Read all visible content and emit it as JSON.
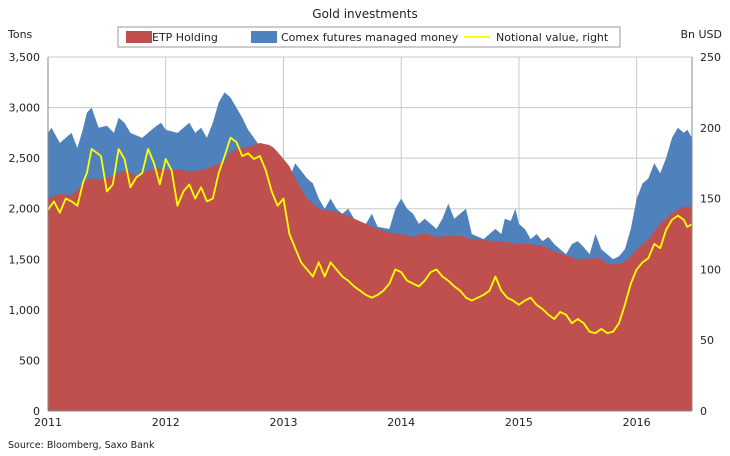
{
  "chart_data": {
    "type": "area",
    "title": "Gold investments",
    "left_axis_unit": "Tons",
    "right_axis_unit": "Bn USD",
    "source": "Source: Bloomberg, Saxo Bank",
    "legend": [
      {
        "name": "ETP Holding",
        "color": "#c0504d",
        "kind": "area"
      },
      {
        "name": "Comex futures managed money",
        "color": "#4f81bd",
        "kind": "area"
      },
      {
        "name": "Notional value, right",
        "color": "#ffff00",
        "kind": "line"
      }
    ],
    "legend_placement": "top-center",
    "grid": true,
    "x_range": [
      2011.0,
      2016.47
    ],
    "x_ticks": [
      2011,
      2012,
      2013,
      2014,
      2015,
      2016
    ],
    "x_tick_labels": [
      "2011",
      "2012",
      "2013",
      "2014",
      "2015",
      "2016"
    ],
    "y_left_range": [
      0,
      3500
    ],
    "y_left_ticks": [
      0,
      500,
      1000,
      1500,
      2000,
      2500,
      3000,
      3500
    ],
    "y_left_tick_labels": [
      "0",
      "500",
      "1,000",
      "1,500",
      "2,000",
      "2,500",
      "3,000",
      "3,500"
    ],
    "y_right_range": [
      0,
      250
    ],
    "y_right_ticks": [
      0,
      50,
      100,
      150,
      200,
      250
    ],
    "y_right_tick_labels": [
      "0",
      "50",
      "100",
      "150",
      "200",
      "250"
    ],
    "series": [
      {
        "name": "ETP Holding",
        "axis": "left",
        "points": [
          [
            2011.0,
            2100
          ],
          [
            2011.1,
            2150
          ],
          [
            2011.2,
            2130
          ],
          [
            2011.3,
            2250
          ],
          [
            2011.35,
            2300
          ],
          [
            2011.45,
            2290
          ],
          [
            2011.55,
            2320
          ],
          [
            2011.65,
            2380
          ],
          [
            2011.75,
            2330
          ],
          [
            2011.85,
            2380
          ],
          [
            2011.95,
            2400
          ],
          [
            2012.0,
            2380
          ],
          [
            2012.1,
            2390
          ],
          [
            2012.2,
            2370
          ],
          [
            2012.3,
            2380
          ],
          [
            2012.4,
            2420
          ],
          [
            2012.5,
            2470
          ],
          [
            2012.55,
            2560
          ],
          [
            2012.6,
            2590
          ],
          [
            2012.65,
            2600
          ],
          [
            2012.7,
            2610
          ],
          [
            2012.8,
            2650
          ],
          [
            2012.88,
            2630
          ],
          [
            2012.92,
            2600
          ],
          [
            2012.98,
            2520
          ],
          [
            2013.05,
            2420
          ],
          [
            2013.1,
            2300
          ],
          [
            2013.2,
            2100
          ],
          [
            2013.3,
            2000
          ],
          [
            2013.4,
            1980
          ],
          [
            2013.5,
            1950
          ],
          [
            2013.6,
            1900
          ],
          [
            2013.7,
            1850
          ],
          [
            2013.8,
            1800
          ],
          [
            2013.9,
            1760
          ],
          [
            2014.0,
            1750
          ],
          [
            2014.1,
            1720
          ],
          [
            2014.2,
            1760
          ],
          [
            2014.3,
            1720
          ],
          [
            2014.4,
            1730
          ],
          [
            2014.5,
            1730
          ],
          [
            2014.6,
            1700
          ],
          [
            2014.7,
            1690
          ],
          [
            2014.8,
            1680
          ],
          [
            2014.9,
            1670
          ],
          [
            2015.0,
            1650
          ],
          [
            2015.1,
            1650
          ],
          [
            2015.2,
            1630
          ],
          [
            2015.3,
            1580
          ],
          [
            2015.4,
            1540
          ],
          [
            2015.5,
            1500
          ],
          [
            2015.6,
            1510
          ],
          [
            2015.7,
            1510
          ],
          [
            2015.75,
            1450
          ],
          [
            2015.8,
            1450
          ],
          [
            2015.88,
            1460
          ],
          [
            2015.95,
            1530
          ],
          [
            2016.0,
            1600
          ],
          [
            2016.1,
            1700
          ],
          [
            2016.2,
            1850
          ],
          [
            2016.3,
            1960
          ],
          [
            2016.4,
            2020
          ],
          [
            2016.47,
            2020
          ]
        ]
      },
      {
        "name": "Comex futures managed money",
        "axis": "left",
        "stacked_on": "ETP Holding",
        "points_total": [
          [
            2011.0,
            2750
          ],
          [
            2011.03,
            2800
          ],
          [
            2011.1,
            2650
          ],
          [
            2011.15,
            2700
          ],
          [
            2011.2,
            2750
          ],
          [
            2011.25,
            2600
          ],
          [
            2011.3,
            2800
          ],
          [
            2011.33,
            2950
          ],
          [
            2011.37,
            3000
          ],
          [
            2011.43,
            2800
          ],
          [
            2011.5,
            2820
          ],
          [
            2011.56,
            2750
          ],
          [
            2011.6,
            2900
          ],
          [
            2011.65,
            2850
          ],
          [
            2011.7,
            2750
          ],
          [
            2011.8,
            2700
          ],
          [
            2011.9,
            2800
          ],
          [
            2011.96,
            2850
          ],
          [
            2012.0,
            2780
          ],
          [
            2012.1,
            2750
          ],
          [
            2012.2,
            2850
          ],
          [
            2012.25,
            2750
          ],
          [
            2012.3,
            2800
          ],
          [
            2012.35,
            2700
          ],
          [
            2012.4,
            2850
          ],
          [
            2012.45,
            3050
          ],
          [
            2012.5,
            3150
          ],
          [
            2012.55,
            3100
          ],
          [
            2012.6,
            3000
          ],
          [
            2012.65,
            2900
          ],
          [
            2012.7,
            2780
          ],
          [
            2012.78,
            2650
          ],
          [
            2012.83,
            2600
          ],
          [
            2012.88,
            2580
          ],
          [
            2012.95,
            2480
          ],
          [
            2013.0,
            2400
          ],
          [
            2013.05,
            2300
          ],
          [
            2013.1,
            2450
          ],
          [
            2013.2,
            2300
          ],
          [
            2013.25,
            2250
          ],
          [
            2013.3,
            2100
          ],
          [
            2013.35,
            2000
          ],
          [
            2013.4,
            2100
          ],
          [
            2013.45,
            2000
          ],
          [
            2013.5,
            1950
          ],
          [
            2013.55,
            2000
          ],
          [
            2013.6,
            1900
          ],
          [
            2013.7,
            1850
          ],
          [
            2013.75,
            1950
          ],
          [
            2013.8,
            1820
          ],
          [
            2013.9,
            1800
          ],
          [
            2013.95,
            2000
          ],
          [
            2014.0,
            2100
          ],
          [
            2014.05,
            2000
          ],
          [
            2014.1,
            1950
          ],
          [
            2014.15,
            1850
          ],
          [
            2014.2,
            1900
          ],
          [
            2014.3,
            1800
          ],
          [
            2014.35,
            1900
          ],
          [
            2014.4,
            2050
          ],
          [
            2014.45,
            1900
          ],
          [
            2014.5,
            1950
          ],
          [
            2014.55,
            2000
          ],
          [
            2014.6,
            1750
          ],
          [
            2014.7,
            1700
          ],
          [
            2014.8,
            1800
          ],
          [
            2014.85,
            1750
          ],
          [
            2014.88,
            1900
          ],
          [
            2014.93,
            1880
          ],
          [
            2014.97,
            2000
          ],
          [
            2015.0,
            1850
          ],
          [
            2015.05,
            1800
          ],
          [
            2015.1,
            1700
          ],
          [
            2015.15,
            1750
          ],
          [
            2015.2,
            1680
          ],
          [
            2015.25,
            1720
          ],
          [
            2015.3,
            1650
          ],
          [
            2015.35,
            1600
          ],
          [
            2015.4,
            1550
          ],
          [
            2015.45,
            1650
          ],
          [
            2015.5,
            1680
          ],
          [
            2015.55,
            1620
          ],
          [
            2015.6,
            1550
          ],
          [
            2015.65,
            1750
          ],
          [
            2015.7,
            1600
          ],
          [
            2015.75,
            1550
          ],
          [
            2015.8,
            1500
          ],
          [
            2015.85,
            1530
          ],
          [
            2015.9,
            1600
          ],
          [
            2015.95,
            1800
          ],
          [
            2016.0,
            2100
          ],
          [
            2016.05,
            2250
          ],
          [
            2016.1,
            2300
          ],
          [
            2016.15,
            2450
          ],
          [
            2016.2,
            2350
          ],
          [
            2016.25,
            2500
          ],
          [
            2016.3,
            2700
          ],
          [
            2016.35,
            2800
          ],
          [
            2016.4,
            2750
          ],
          [
            2016.43,
            2780
          ],
          [
            2016.47,
            2700
          ]
        ]
      },
      {
        "name": "Notional value, right",
        "axis": "right",
        "points": [
          [
            2011.0,
            142
          ],
          [
            2011.05,
            148
          ],
          [
            2011.1,
            140
          ],
          [
            2011.15,
            150
          ],
          [
            2011.2,
            148
          ],
          [
            2011.25,
            145
          ],
          [
            2011.3,
            162
          ],
          [
            2011.33,
            168
          ],
          [
            2011.37,
            185
          ],
          [
            2011.42,
            182
          ],
          [
            2011.45,
            180
          ],
          [
            2011.5,
            155
          ],
          [
            2011.55,
            160
          ],
          [
            2011.6,
            185
          ],
          [
            2011.65,
            178
          ],
          [
            2011.7,
            158
          ],
          [
            2011.75,
            165
          ],
          [
            2011.8,
            168
          ],
          [
            2011.85,
            185
          ],
          [
            2011.9,
            175
          ],
          [
            2011.95,
            160
          ],
          [
            2012.0,
            178
          ],
          [
            2012.05,
            170
          ],
          [
            2012.1,
            145
          ],
          [
            2012.15,
            155
          ],
          [
            2012.2,
            160
          ],
          [
            2012.25,
            150
          ],
          [
            2012.3,
            158
          ],
          [
            2012.35,
            148
          ],
          [
            2012.4,
            150
          ],
          [
            2012.45,
            168
          ],
          [
            2012.5,
            180
          ],
          [
            2012.55,
            193
          ],
          [
            2012.6,
            190
          ],
          [
            2012.65,
            180
          ],
          [
            2012.7,
            182
          ],
          [
            2012.75,
            178
          ],
          [
            2012.8,
            180
          ],
          [
            2012.85,
            170
          ],
          [
            2012.9,
            155
          ],
          [
            2012.95,
            145
          ],
          [
            2013.0,
            150
          ],
          [
            2013.05,
            125
          ],
          [
            2013.1,
            115
          ],
          [
            2013.15,
            105
          ],
          [
            2013.2,
            100
          ],
          [
            2013.25,
            95
          ],
          [
            2013.3,
            105
          ],
          [
            2013.35,
            95
          ],
          [
            2013.4,
            105
          ],
          [
            2013.45,
            100
          ],
          [
            2013.5,
            95
          ],
          [
            2013.55,
            92
          ],
          [
            2013.6,
            88
          ],
          [
            2013.65,
            85
          ],
          [
            2013.7,
            82
          ],
          [
            2013.75,
            80
          ],
          [
            2013.8,
            82
          ],
          [
            2013.85,
            85
          ],
          [
            2013.9,
            90
          ],
          [
            2013.95,
            100
          ],
          [
            2014.0,
            98
          ],
          [
            2014.05,
            92
          ],
          [
            2014.1,
            90
          ],
          [
            2014.15,
            88
          ],
          [
            2014.2,
            92
          ],
          [
            2014.25,
            98
          ],
          [
            2014.3,
            100
          ],
          [
            2014.35,
            95
          ],
          [
            2014.4,
            92
          ],
          [
            2014.45,
            88
          ],
          [
            2014.5,
            85
          ],
          [
            2014.55,
            80
          ],
          [
            2014.6,
            78
          ],
          [
            2014.65,
            80
          ],
          [
            2014.7,
            82
          ],
          [
            2014.75,
            85
          ],
          [
            2014.8,
            95
          ],
          [
            2014.85,
            85
          ],
          [
            2014.9,
            80
          ],
          [
            2014.95,
            78
          ],
          [
            2015.0,
            75
          ],
          [
            2015.05,
            78
          ],
          [
            2015.1,
            80
          ],
          [
            2015.15,
            75
          ],
          [
            2015.2,
            72
          ],
          [
            2015.25,
            68
          ],
          [
            2015.3,
            65
          ],
          [
            2015.35,
            70
          ],
          [
            2015.4,
            68
          ],
          [
            2015.45,
            62
          ],
          [
            2015.5,
            65
          ],
          [
            2015.55,
            62
          ],
          [
            2015.6,
            56
          ],
          [
            2015.65,
            55
          ],
          [
            2015.7,
            58
          ],
          [
            2015.75,
            55
          ],
          [
            2015.8,
            56
          ],
          [
            2015.85,
            62
          ],
          [
            2015.9,
            75
          ],
          [
            2015.95,
            90
          ],
          [
            2016.0,
            100
          ],
          [
            2016.05,
            105
          ],
          [
            2016.1,
            108
          ],
          [
            2016.15,
            118
          ],
          [
            2016.2,
            115
          ],
          [
            2016.25,
            128
          ],
          [
            2016.3,
            135
          ],
          [
            2016.35,
            138
          ],
          [
            2016.4,
            135
          ],
          [
            2016.43,
            130
          ],
          [
            2016.47,
            132
          ]
        ]
      }
    ]
  }
}
